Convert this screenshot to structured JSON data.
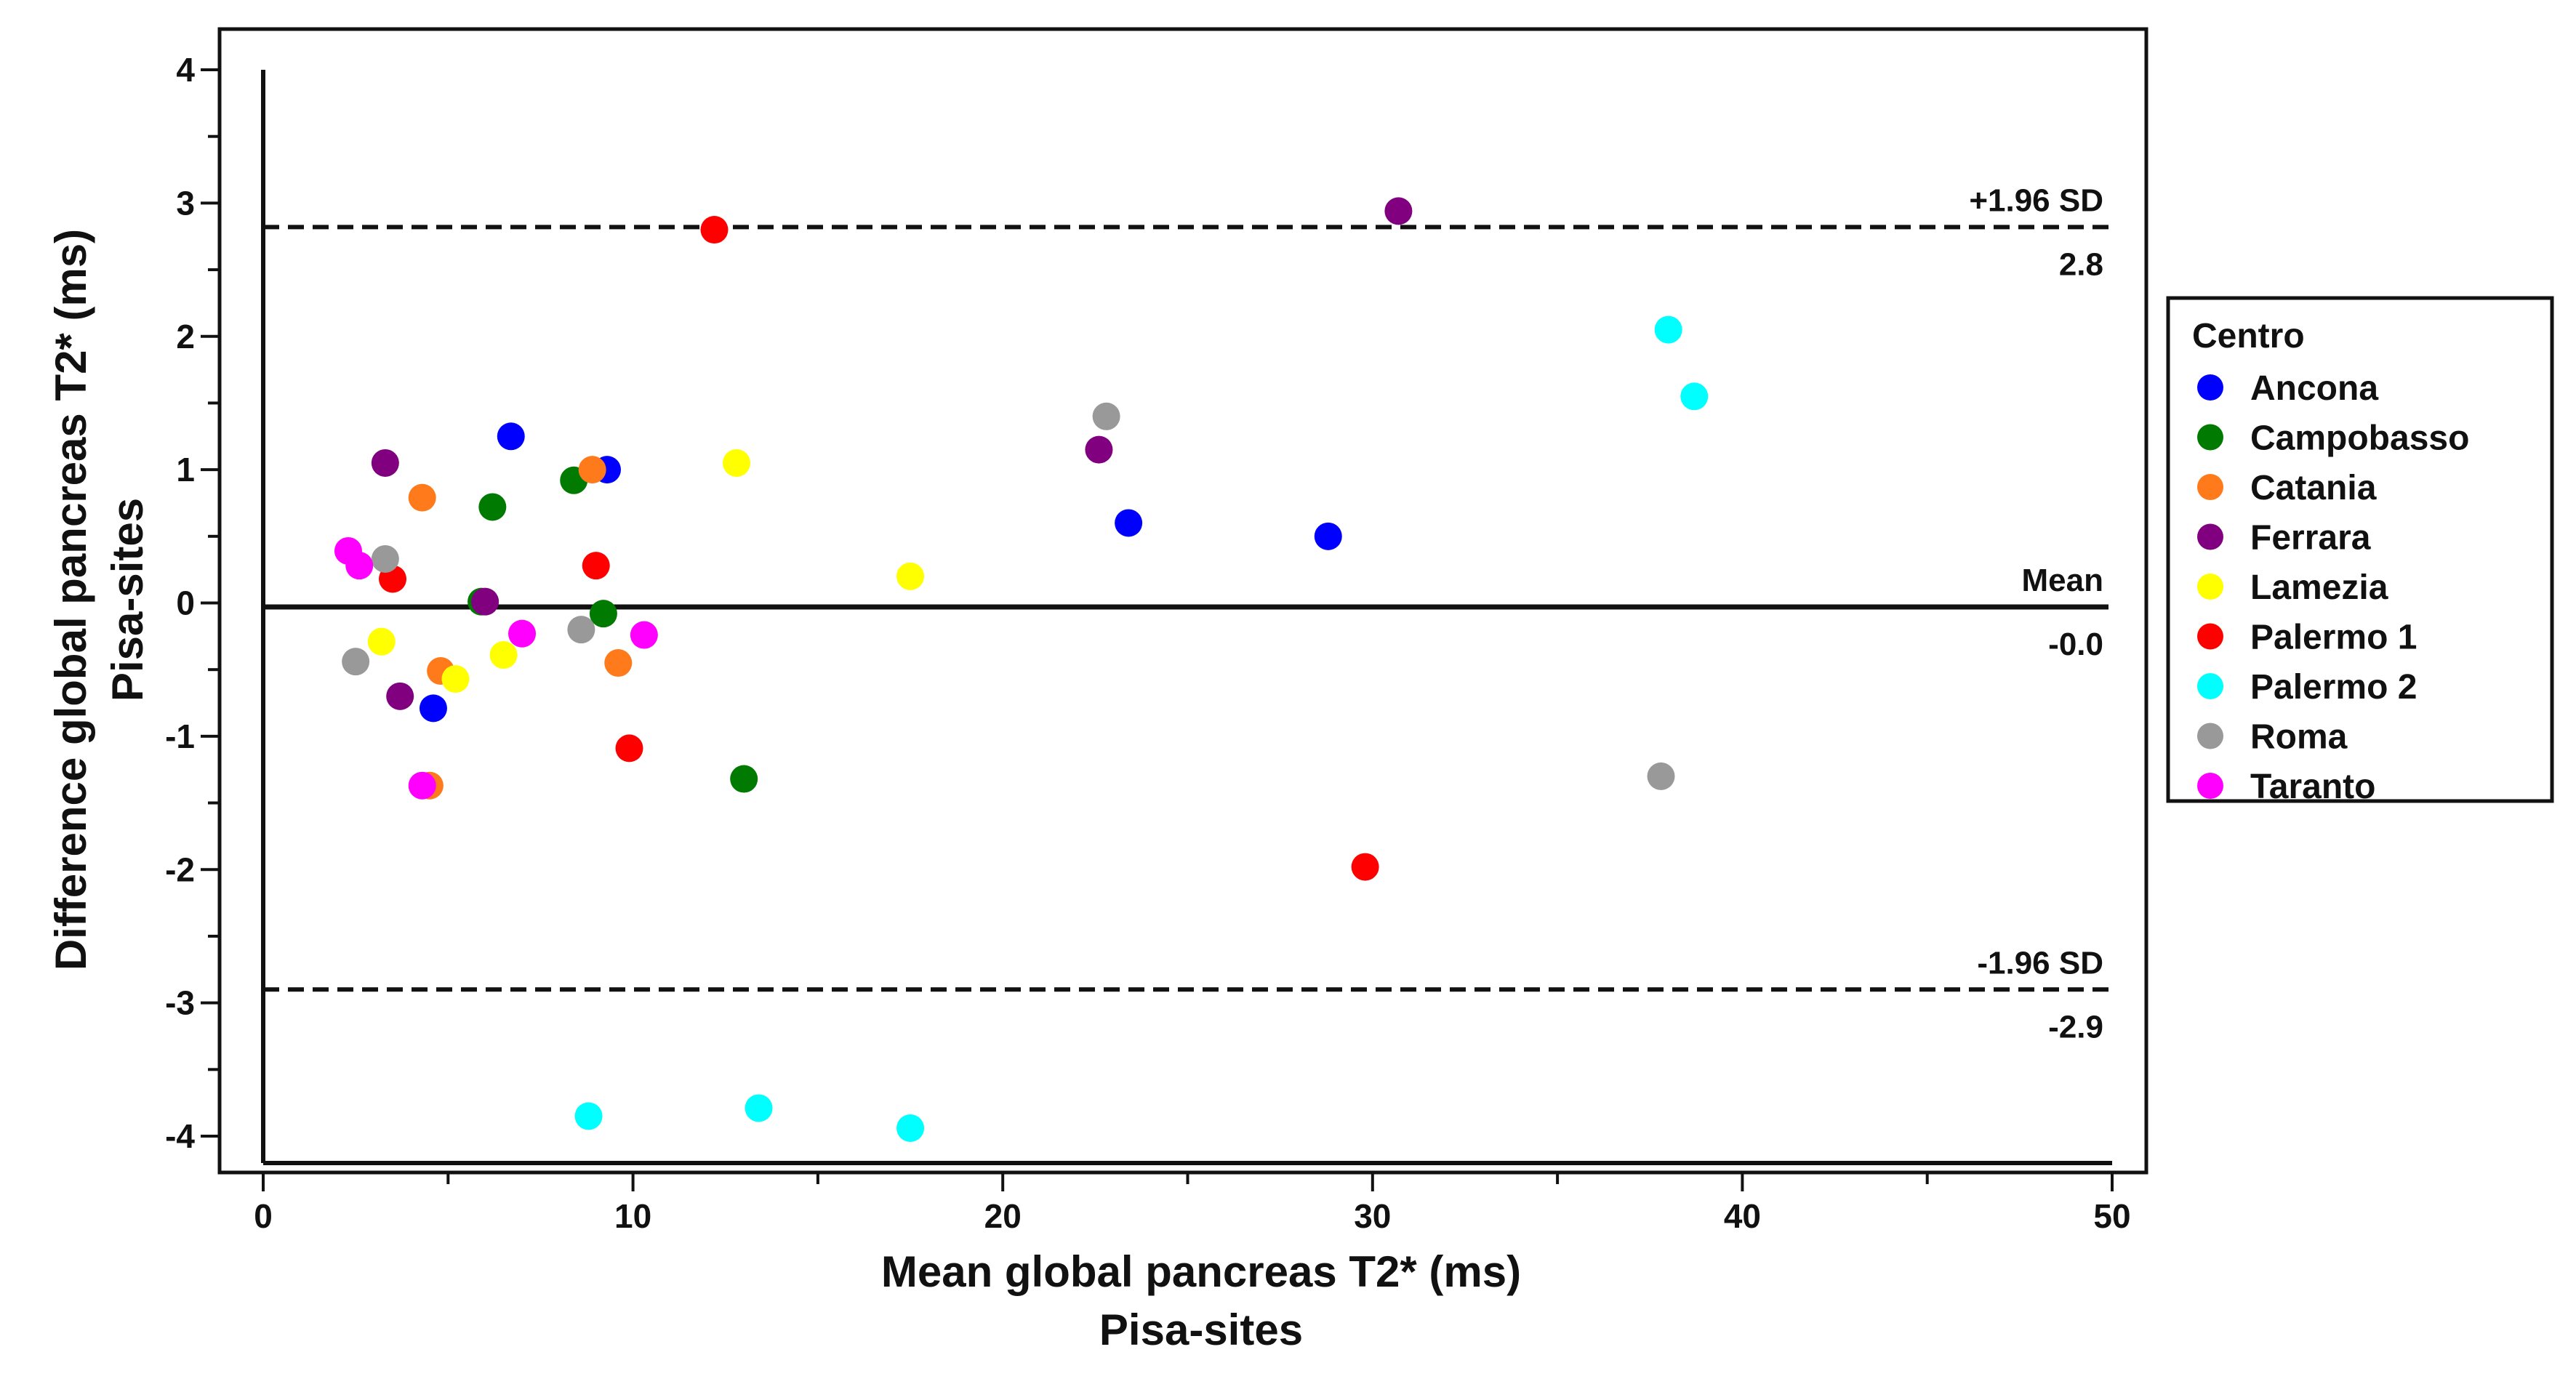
{
  "chart_data": {
    "type": "scatter",
    "title": "",
    "xlabel": "Mean global pancreas T2* (ms)",
    "xlabel_sub": "Pisa-sites",
    "ylabel": "Difference global pancreas T2* (ms)",
    "ylabel_sub": "Pisa-sites",
    "xlim": [
      -1,
      50
    ],
    "ylim": [
      -4.3,
      4.3
    ],
    "x_ticks": [
      0,
      10,
      20,
      30,
      40,
      50
    ],
    "x_minor_ticks": [
      5,
      15,
      25,
      35,
      45
    ],
    "y_ticks": [
      -4,
      -3,
      -2,
      -1,
      0,
      1,
      2,
      3,
      4
    ],
    "y_minor_ticks": [
      -3.5,
      -2.5,
      -1.5,
      -0.5,
      0.5,
      1.5,
      2.5,
      3.5
    ],
    "grid": false,
    "reference_lines": [
      {
        "name": "upper-loa",
        "y": 2.82,
        "style": "dashed",
        "label_above": "+1.96 SD",
        "label_below": "2.8"
      },
      {
        "name": "mean",
        "y": -0.03,
        "style": "solid",
        "label_above": "Mean",
        "label_below": "-0.0"
      },
      {
        "name": "lower-loa",
        "y": -2.9,
        "style": "dashed",
        "label_above": "-1.96 SD",
        "label_below": "-2.9"
      }
    ],
    "legend": {
      "title": "Centro",
      "placement": "right"
    },
    "series": [
      {
        "name": "Ancona",
        "color": "#0000ff",
        "points": [
          [
            6.7,
            1.25
          ],
          [
            9.3,
            1.0
          ],
          [
            4.6,
            -0.79
          ],
          [
            23.4,
            0.6
          ],
          [
            28.8,
            0.5
          ]
        ]
      },
      {
        "name": "Campobasso",
        "color": "#007a00",
        "points": [
          [
            8.4,
            0.92
          ],
          [
            6.2,
            0.72
          ],
          [
            5.9,
            0.01
          ],
          [
            9.2,
            -0.08
          ],
          [
            13.0,
            -1.32
          ]
        ]
      },
      {
        "name": "Catania",
        "color": "#ff7a1a",
        "points": [
          [
            4.3,
            0.79
          ],
          [
            8.9,
            1.0
          ],
          [
            4.8,
            -0.51
          ],
          [
            9.6,
            -0.45
          ],
          [
            4.5,
            -1.37
          ]
        ]
      },
      {
        "name": "Ferrara",
        "color": "#800080",
        "points": [
          [
            30.7,
            2.94
          ],
          [
            3.3,
            1.05
          ],
          [
            22.6,
            1.15
          ],
          [
            6.0,
            0.01
          ],
          [
            3.7,
            -0.7
          ]
        ]
      },
      {
        "name": "Lamezia",
        "color": "#ffff00",
        "points": [
          [
            12.8,
            1.05
          ],
          [
            17.5,
            0.2
          ],
          [
            3.2,
            -0.29
          ],
          [
            6.5,
            -0.39
          ],
          [
            5.2,
            -0.57
          ]
        ]
      },
      {
        "name": "Palermo 1",
        "color": "#ff0000",
        "points": [
          [
            12.2,
            2.8
          ],
          [
            3.5,
            0.18
          ],
          [
            9.0,
            0.28
          ],
          [
            9.9,
            -1.09
          ],
          [
            29.8,
            -1.98
          ]
        ]
      },
      {
        "name": "Palermo 2",
        "color": "#00ffff",
        "points": [
          [
            38.0,
            2.05
          ],
          [
            38.7,
            1.55
          ],
          [
            8.8,
            -3.85
          ],
          [
            13.4,
            -3.79
          ],
          [
            17.5,
            -3.94
          ]
        ]
      },
      {
        "name": "Roma",
        "color": "#999999",
        "points": [
          [
            22.8,
            1.4
          ],
          [
            3.3,
            0.33
          ],
          [
            8.6,
            -0.2
          ],
          [
            2.5,
            -0.44
          ],
          [
            37.8,
            -1.3
          ]
        ]
      },
      {
        "name": "Taranto",
        "color": "#ff00ff",
        "points": [
          [
            2.3,
            0.39
          ],
          [
            2.6,
            0.28
          ],
          [
            7.0,
            -0.23
          ],
          [
            10.3,
            -0.24
          ],
          [
            4.3,
            -1.37
          ]
        ]
      }
    ]
  }
}
